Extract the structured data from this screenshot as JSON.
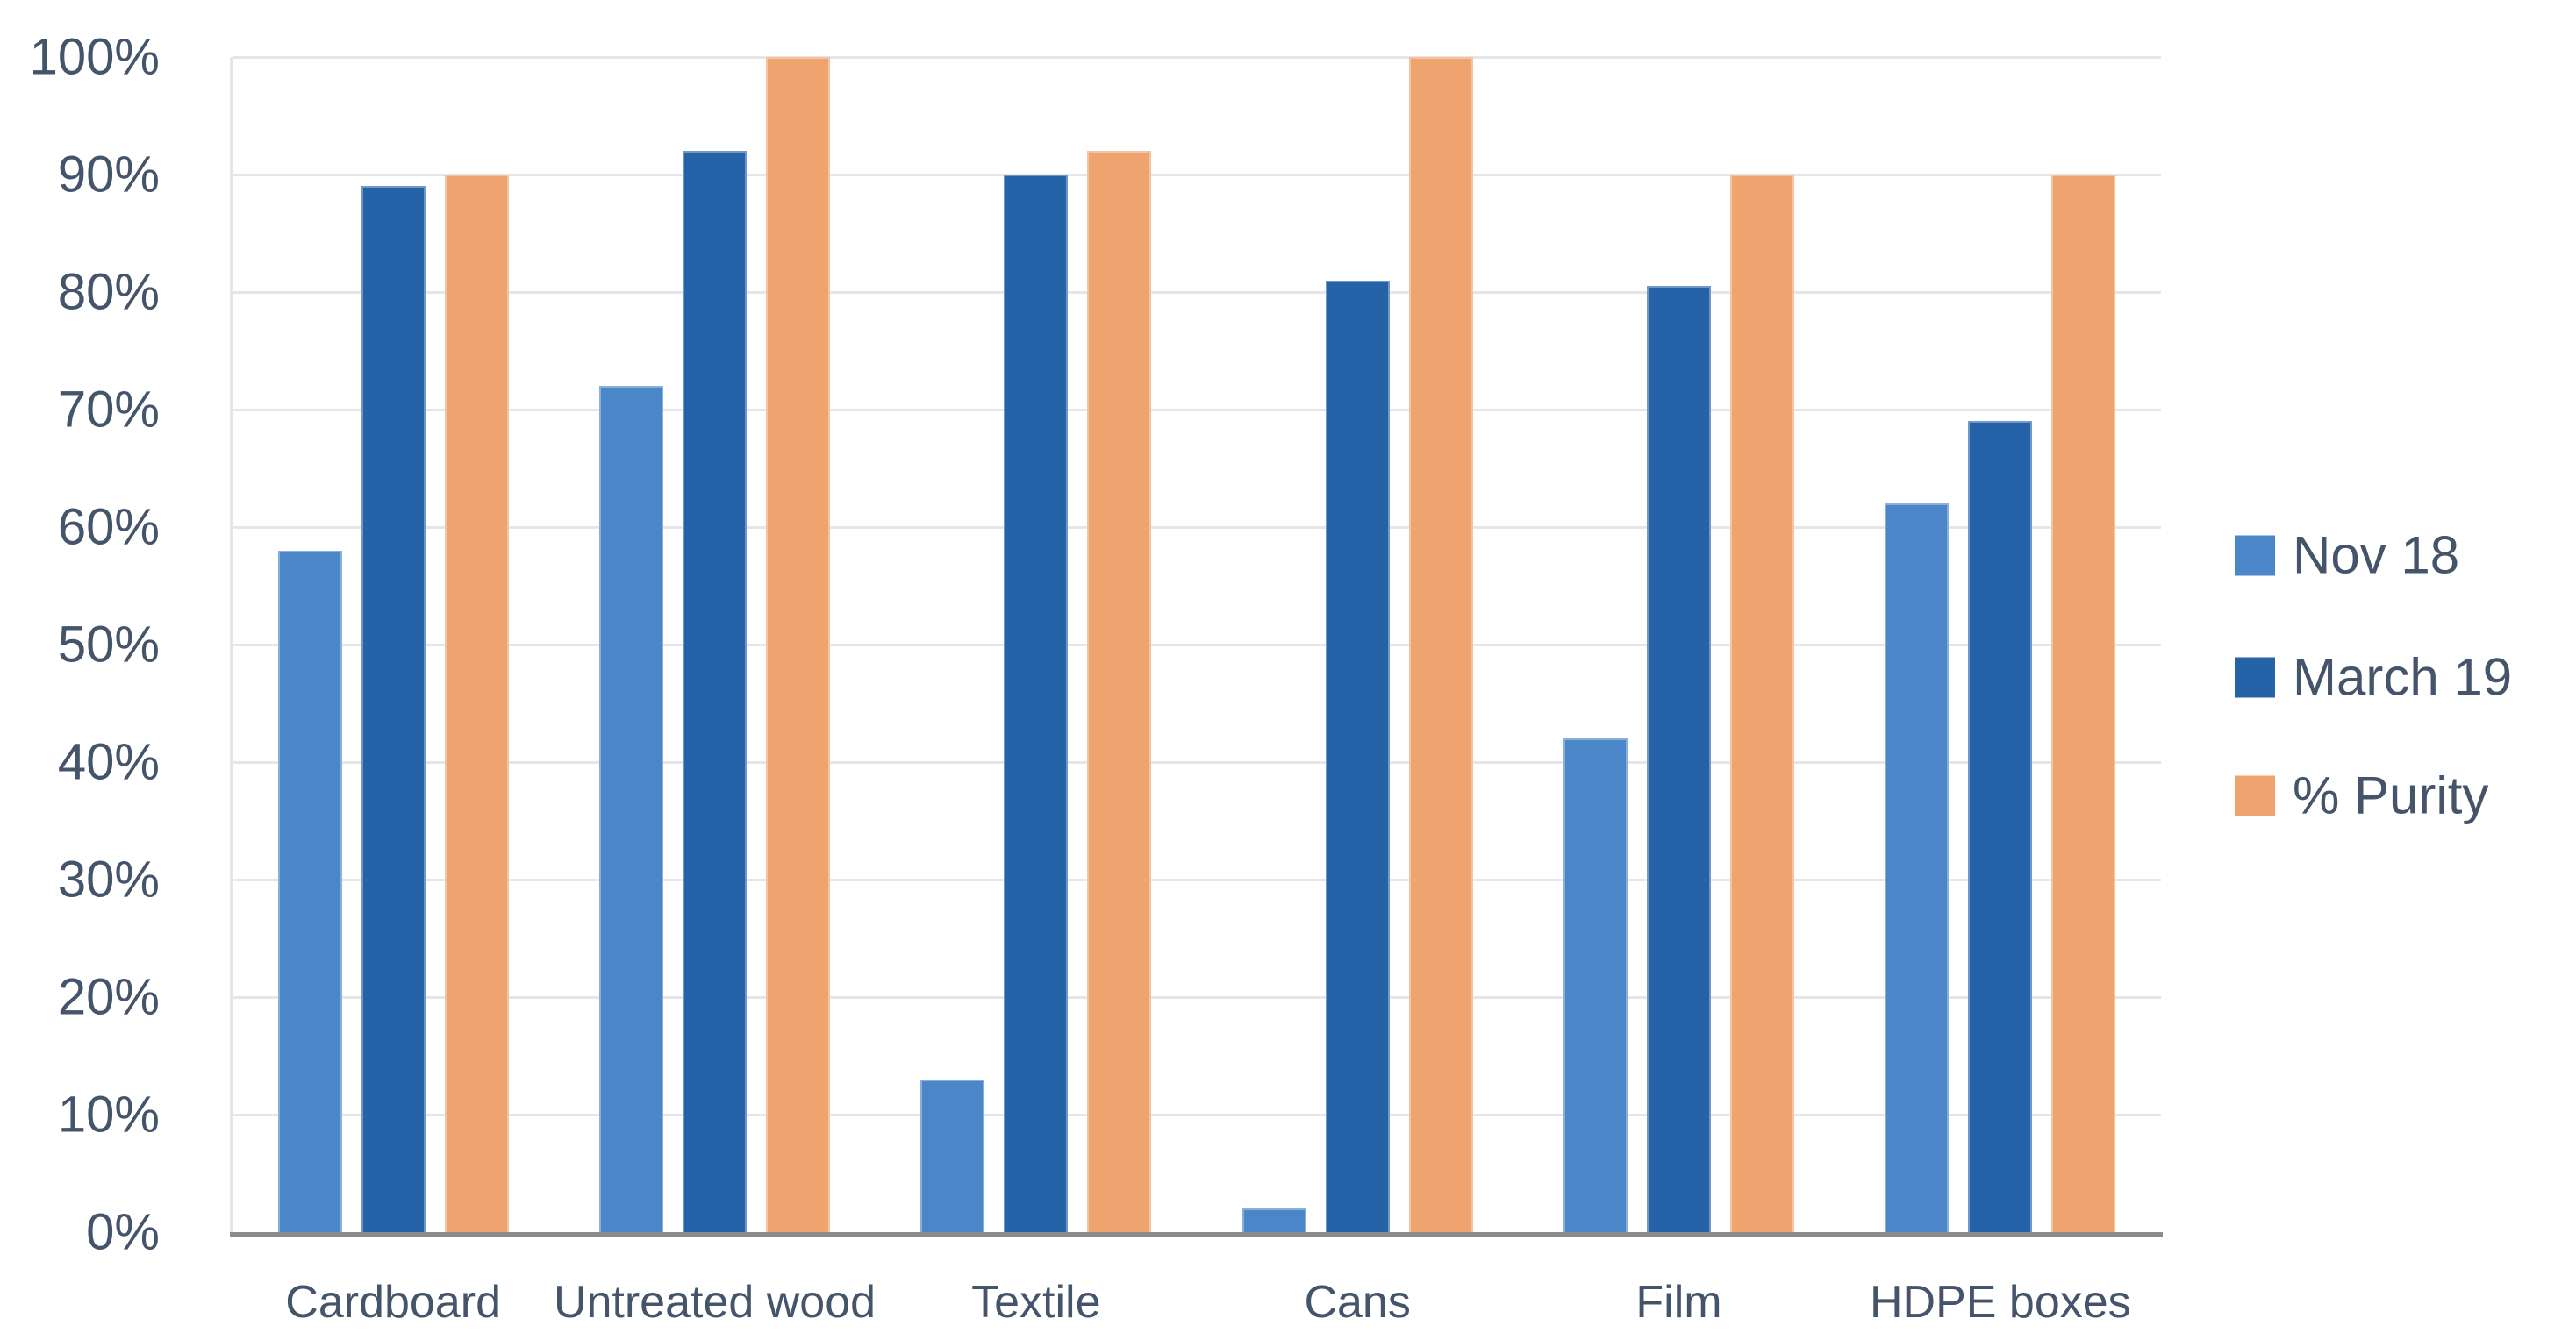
{
  "chart_data": {
    "type": "bar",
    "title": "",
    "xlabel": "",
    "ylabel": "",
    "ylim": [
      0,
      100
    ],
    "grid": "horizontal",
    "legend_position": "right",
    "categories": [
      "Cardboard",
      "Untreated wood",
      "Textile",
      "Cans",
      "Film",
      "HDPE boxes"
    ],
    "series": [
      {
        "name": "Nov 18",
        "color": "#4A86C8",
        "values": [
          58,
          72,
          13,
          2,
          42,
          62
        ]
      },
      {
        "name": "March 19",
        "color": "#2562A8",
        "values": [
          89,
          92,
          90,
          81,
          80.5,
          69
        ]
      },
      {
        "name": "% Purity",
        "color": "#EFA470",
        "values": [
          90,
          100,
          92,
          100,
          90,
          90
        ]
      }
    ],
    "y_ticks": {
      "values": [
        100,
        90,
        80,
        70,
        60,
        50,
        40,
        30,
        20,
        10,
        0
      ],
      "labels": [
        "100%",
        "90%",
        "80%",
        "70%",
        "60%",
        "50%",
        "40%",
        "30%",
        "20%",
        "10%",
        "0%"
      ]
    }
  },
  "colors": {
    "text": "#44546A",
    "gridline": "#E6E6E6",
    "axis_line": "#8C8C8C",
    "background": "#FFFFFF"
  }
}
